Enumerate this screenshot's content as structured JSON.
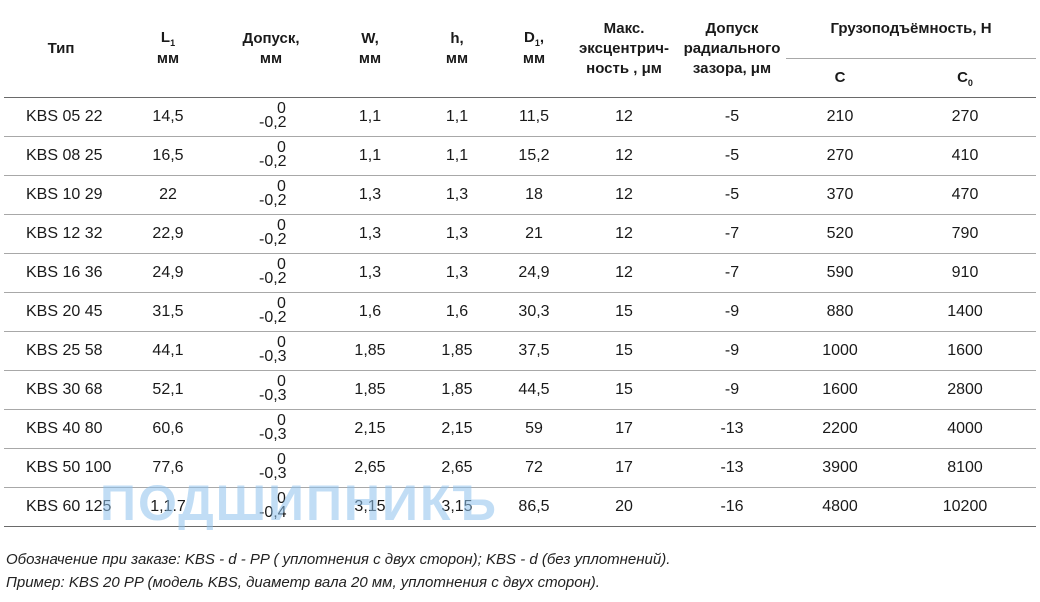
{
  "headers": {
    "type": "Тип",
    "l1_main": "L",
    "l1_sub": "1",
    "l1_unit": "мм",
    "tol_line1": "Допуск,",
    "tol_line2": "мм",
    "w_line1": "W,",
    "w_line2": "мм",
    "h_line1": "h,",
    "h_line2": "мм",
    "d1_main": "D",
    "d1_sub": "1",
    "d1_comma": ",",
    "d1_unit": "мм",
    "ecc_line1": "Макс.",
    "ecc_line2": "эксцентрич-",
    "ecc_line3": "ность , μм",
    "rad_line1": "Допуск",
    "rad_line2": "радиального",
    "rad_line3": "зазора, μм",
    "load": "Грузоподъёмность, Н",
    "c": "С",
    "c0_main": "С",
    "c0_sub": "0"
  },
  "rows": [
    {
      "type": "KBS 05 22",
      "l1": "14,5",
      "tol_up": "0",
      "tol_dn": "-0,2",
      "w": "1,1",
      "h": "1,1",
      "d1": "11,5",
      "ecc": "12",
      "rad": "-5",
      "c": "210",
      "c0": "270"
    },
    {
      "type": "KBS 08 25",
      "l1": "16,5",
      "tol_up": "0",
      "tol_dn": "-0,2",
      "w": "1,1",
      "h": "1,1",
      "d1": "15,2",
      "ecc": "12",
      "rad": "-5",
      "c": "270",
      "c0": "410"
    },
    {
      "type": "KBS 10 29",
      "l1": "22",
      "tol_up": "0",
      "tol_dn": "-0,2",
      "w": "1,3",
      "h": "1,3",
      "d1": "18",
      "ecc": "12",
      "rad": "-5",
      "c": "370",
      "c0": "470"
    },
    {
      "type": "KBS 12 32",
      "l1": "22,9",
      "tol_up": "0",
      "tol_dn": "-0,2",
      "w": "1,3",
      "h": "1,3",
      "d1": "21",
      "ecc": "12",
      "rad": "-7",
      "c": "520",
      "c0": "790"
    },
    {
      "type": "KBS 16 36",
      "l1": "24,9",
      "tol_up": "0",
      "tol_dn": "-0,2",
      "w": "1,3",
      "h": "1,3",
      "d1": "24,9",
      "ecc": "12",
      "rad": "-7",
      "c": "590",
      "c0": "910"
    },
    {
      "type": "KBS 20 45",
      "l1": "31,5",
      "tol_up": "0",
      "tol_dn": "-0,2",
      "w": "1,6",
      "h": "1,6",
      "d1": "30,3",
      "ecc": "15",
      "rad": "-9",
      "c": "880",
      "c0": "1400"
    },
    {
      "type": "KBS 25 58",
      "l1": "44,1",
      "tol_up": "0",
      "tol_dn": "-0,3",
      "w": "1,85",
      "h": "1,85",
      "d1": "37,5",
      "ecc": "15",
      "rad": "-9",
      "c": "1000",
      "c0": "1600"
    },
    {
      "type": "KBS 30 68",
      "l1": "52,1",
      "tol_up": "0",
      "tol_dn": "-0,3",
      "w": "1,85",
      "h": "1,85",
      "d1": "44,5",
      "ecc": "15",
      "rad": "-9",
      "c": "1600",
      "c0": "2800"
    },
    {
      "type": "KBS 40 80",
      "l1": "60,6",
      "tol_up": "0",
      "tol_dn": "-0,3",
      "w": "2,15",
      "h": "2,15",
      "d1": "59",
      "ecc": "17",
      "rad": "-13",
      "c": "2200",
      "c0": "4000"
    },
    {
      "type": "KBS 50 100",
      "l1": "77,6",
      "tol_up": "0",
      "tol_dn": "-0,3",
      "w": "2,65",
      "h": "2,65",
      "d1": "72",
      "ecc": "17",
      "rad": "-13",
      "c": "3900",
      "c0": "8100"
    },
    {
      "type": "KBS 60 125",
      "l1": "1,1.7",
      "tol_up": "0",
      "tol_dn": "-0,4",
      "w": "3,15",
      "h": "3,15",
      "d1": "86,5",
      "ecc": "20",
      "rad": "-16",
      "c": "4800",
      "c0": "10200"
    }
  ],
  "notes": {
    "line1": "Обозначение при заказе: KBS - d - PP ( уплотнения с двух сторон); KBS - d (без уплотнений).",
    "line2": "Пример: KBS 20 PP (модель KBS, диаметр вала 20 мм, уплотнения с двух сторон)."
  },
  "watermark": "ПОДШИПНИКЪ"
}
